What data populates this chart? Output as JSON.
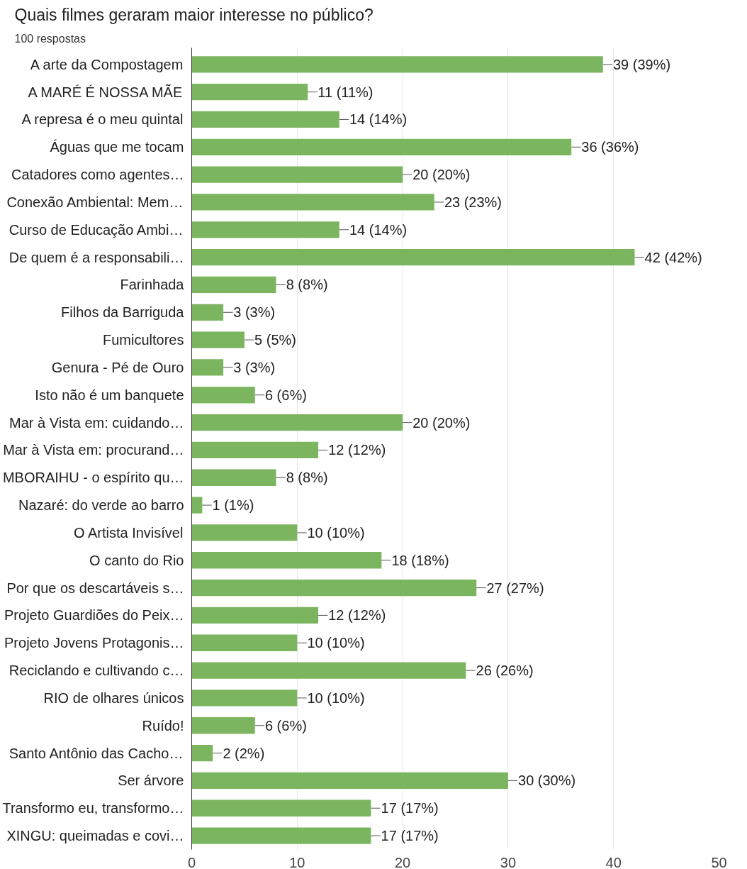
{
  "chart_data": {
    "type": "bar",
    "orientation": "horizontal",
    "title": "Quais filmes geraram maior interesse no público?",
    "subtitle": "100 respostas",
    "categories": [
      "A arte da Compostagem",
      "A MARÉ É NOSSA MÃE",
      "A represa é o meu quintal",
      "Águas que me tocam",
      "Catadores como agentes…",
      "Conexão Ambiental: Mem…",
      "Curso de Educação Ambi…",
      "De quem é a responsabili…",
      "Farinhada",
      "Filhos da Barriguda",
      "Fumicultores",
      "Genura - Pé de Ouro",
      "Isto não é um banquete",
      "Mar à Vista em: cuidando…",
      "Mar à Vista em: procurand…",
      "MBORAIHU - o espírito qu…",
      "Nazaré: do verde ao barro",
      "O Artista Invisível",
      "O canto do Rio",
      "Por que os descartáveis s…",
      "Projeto Guardiões do Peix…",
      "Projeto Jovens Protagonis…",
      "Reciclando e cultivando c…",
      "RIO de olhares únicos",
      "Ruído!",
      "Santo Antônio das Cacho…",
      "Ser árvore",
      "Transformo eu, transformo…",
      "XINGU: queimadas e covi…"
    ],
    "values": [
      39,
      11,
      14,
      36,
      20,
      23,
      14,
      42,
      8,
      3,
      5,
      3,
      6,
      20,
      12,
      8,
      1,
      10,
      18,
      27,
      12,
      10,
      26,
      10,
      6,
      2,
      30,
      17,
      17
    ],
    "value_labels": [
      "39 (39%)",
      "11 (11%)",
      "14 (14%)",
      "36 (36%)",
      "20 (20%)",
      "23 (23%)",
      "14 (14%)",
      "42 (42%)",
      "8 (8%)",
      "3 (3%)",
      "5 (5%)",
      "3 (3%)",
      "6 (6%)",
      "20 (20%)",
      "12 (12%)",
      "8 (8%)",
      "1 (1%)",
      "10 (10%)",
      "18 (18%)",
      "27 (27%)",
      "12 (12%)",
      "10 (10%)",
      "26 (26%)",
      "10 (10%)",
      "6 (6%)",
      "2 (2%)",
      "30 (30%)",
      "17 (17%)",
      "17 (17%)"
    ],
    "color": "#7cb560",
    "xlim": [
      0,
      50
    ],
    "xticks": [
      0,
      10,
      20,
      30,
      40,
      50
    ],
    "grid": "x"
  }
}
